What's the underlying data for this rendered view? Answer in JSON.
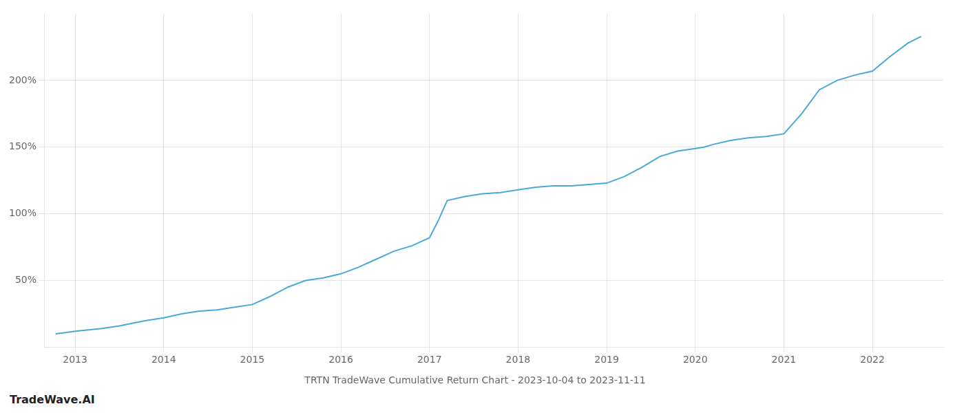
{
  "chart_data": {
    "type": "line",
    "title": "TRTN TradeWave Cumulative Return Chart - 2023-10-04 to 2023-11-11",
    "annotations": [
      "TradeWave.AI"
    ],
    "color": "#4aa8d8",
    "x": [
      2012.78,
      2012.9,
      2013.0,
      2013.15,
      2013.3,
      2013.5,
      2013.65,
      2013.8,
      2014.0,
      2014.2,
      2014.4,
      2014.6,
      2014.8,
      2015.0,
      2015.2,
      2015.4,
      2015.6,
      2015.8,
      2016.0,
      2016.2,
      2016.4,
      2016.6,
      2016.8,
      2017.0,
      2017.1,
      2017.2,
      2017.4,
      2017.6,
      2017.8,
      2018.0,
      2018.2,
      2018.4,
      2018.6,
      2018.8,
      2019.0,
      2019.2,
      2019.4,
      2019.6,
      2019.8,
      2020.0,
      2020.1,
      2020.2,
      2020.4,
      2020.6,
      2020.8,
      2021.0,
      2021.2,
      2021.4,
      2021.6,
      2021.8,
      2022.0,
      2022.2,
      2022.4,
      2022.55
    ],
    "values": [
      10,
      11,
      12,
      13,
      14,
      16,
      18,
      20,
      22,
      25,
      27,
      28,
      30,
      32,
      38,
      45,
      50,
      52,
      55,
      60,
      66,
      72,
      76,
      82,
      95,
      110,
      113,
      115,
      116,
      118,
      120,
      121,
      121,
      122,
      123,
      128,
      135,
      143,
      147,
      149,
      150,
      152,
      155,
      157,
      158,
      160,
      175,
      193,
      200,
      204,
      207,
      218,
      228,
      233
    ],
    "xlim": [
      2012.65,
      2022.8
    ],
    "xticks": [
      2013,
      2014,
      2015,
      2016,
      2017,
      2018,
      2019,
      2020,
      2021,
      2022
    ],
    "ylim": [
      0,
      250
    ],
    "yticks": [
      {
        "value": 50,
        "label": "50%"
      },
      {
        "value": 100,
        "label": "100%"
      },
      {
        "value": 150,
        "label": "150%"
      },
      {
        "value": 200,
        "label": "200%"
      }
    ],
    "grid": true
  }
}
